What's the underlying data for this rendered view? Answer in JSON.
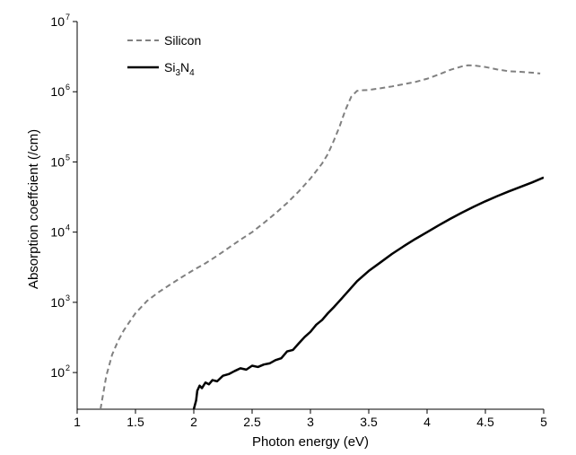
{
  "chart_data": {
    "type": "line",
    "title": "",
    "xlabel": "Photon energy (eV)",
    "ylabel": "Absorption coeffcient (/cm)",
    "x_scale": "linear",
    "y_scale": "log",
    "xlim": [
      1,
      5
    ],
    "ylim": [
      30,
      10000000
    ],
    "x_ticks": [
      "1",
      "1.5",
      "2",
      "2.5",
      "3",
      "3.5",
      "4",
      "4.5",
      "5"
    ],
    "y_ticks": [
      {
        "base": "10",
        "exp": "2"
      },
      {
        "base": "10",
        "exp": "3"
      },
      {
        "base": "10",
        "exp": "4"
      },
      {
        "base": "10",
        "exp": "5"
      },
      {
        "base": "10",
        "exp": "6"
      },
      {
        "base": "10",
        "exp": "7"
      }
    ],
    "grid": false,
    "legend_position": "top-left",
    "series": [
      {
        "name": "Silicon",
        "color": "#808080",
        "dash": true,
        "x": [
          1.2,
          1.25,
          1.3,
          1.35,
          1.4,
          1.45,
          1.5,
          1.6,
          1.7,
          1.8,
          1.9,
          2.0,
          2.1,
          2.2,
          2.3,
          2.4,
          2.5,
          2.6,
          2.7,
          2.8,
          2.9,
          3.0,
          3.1,
          3.15,
          3.2,
          3.25,
          3.3,
          3.35,
          3.4,
          3.45,
          3.5,
          3.6,
          3.7,
          3.8,
          3.9,
          4.0,
          4.1,
          4.2,
          4.3,
          4.35,
          4.4,
          4.5,
          4.6,
          4.7,
          4.8,
          4.9,
          4.97
        ],
        "y": [
          30,
          90,
          180,
          280,
          400,
          530,
          700,
          1050,
          1400,
          1800,
          2300,
          2900,
          3600,
          4600,
          6000,
          7800,
          10000,
          13500,
          18500,
          26000,
          38000,
          58000,
          95000,
          130000,
          200000,
          320000,
          550000,
          850000,
          1030000,
          1050000,
          1060000,
          1120000,
          1190000,
          1280000,
          1380000,
          1530000,
          1760000,
          2050000,
          2300000,
          2380000,
          2370000,
          2250000,
          2080000,
          1960000,
          1920000,
          1870000,
          1820000
        ]
      },
      {
        "name": "Si3N4",
        "label_parts": [
          "Si",
          "3",
          "N",
          "4"
        ],
        "color": "#000000",
        "dash": false,
        "x": [
          2.0,
          2.02,
          2.03,
          2.05,
          2.07,
          2.1,
          2.13,
          2.16,
          2.2,
          2.25,
          2.3,
          2.35,
          2.4,
          2.45,
          2.5,
          2.55,
          2.6,
          2.65,
          2.7,
          2.75,
          2.8,
          2.85,
          2.9,
          2.95,
          3.0,
          3.05,
          3.1,
          3.15,
          3.2,
          3.25,
          3.3,
          3.4,
          3.5,
          3.6,
          3.7,
          3.8,
          3.9,
          4.0,
          4.1,
          4.2,
          4.3,
          4.4,
          4.5,
          4.6,
          4.7,
          4.8,
          4.9,
          5.0
        ],
        "y": [
          30,
          40,
          55,
          65,
          60,
          72,
          68,
          78,
          75,
          90,
          95,
          105,
          115,
          110,
          125,
          120,
          130,
          135,
          150,
          160,
          200,
          210,
          260,
          320,
          380,
          480,
          560,
          700,
          850,
          1050,
          1300,
          2000,
          2800,
          3700,
          4900,
          6300,
          8000,
          10000,
          12500,
          15500,
          19000,
          23000,
          27500,
          32500,
          38000,
          44000,
          51000,
          60000
        ]
      }
    ]
  }
}
